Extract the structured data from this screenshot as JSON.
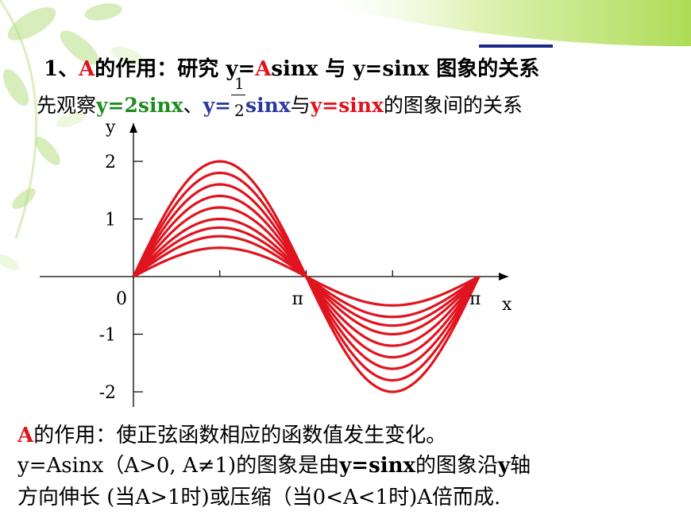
{
  "heading": {
    "number": "1、",
    "a": "A",
    "rest1": "的作用：研究 y=",
    "a2": "A",
    "rest2": "sinx 与 y=sinx 图象的关系"
  },
  "subheading": {
    "prefix": "先观察",
    "f1": "y=2sinx",
    "sep1": "、",
    "f2_pre": "y=",
    "frac_num": "1",
    "frac_den": "2",
    "f2_post": "sinx",
    "mid": "与",
    "f3": "y=sinx",
    "suffix": "的图象间的关系"
  },
  "chart_data": {
    "type": "line",
    "x": [
      "0",
      "π/2",
      "π",
      "3π/2",
      "2π"
    ],
    "xlabel": "x",
    "ylabel": "y",
    "ylim": [
      -2,
      2
    ],
    "grid": false,
    "y_ticks": [
      "2",
      "1",
      "-1",
      "-2"
    ],
    "x_tick_labels": [
      "0",
      "π",
      "π"
    ],
    "series_color": "#e0141e",
    "series": [
      {
        "amplitude": 2.0,
        "values": [
          0,
          2.0,
          0,
          -2.0,
          0
        ]
      },
      {
        "amplitude": 1.8,
        "values": [
          0,
          1.8,
          0,
          -1.8,
          0
        ]
      },
      {
        "amplitude": 1.6,
        "values": [
          0,
          1.6,
          0,
          -1.6,
          0
        ]
      },
      {
        "amplitude": 1.4,
        "values": [
          0,
          1.4,
          0,
          -1.4,
          0
        ]
      },
      {
        "amplitude": 1.2,
        "values": [
          0,
          1.2,
          0,
          -1.2,
          0
        ]
      },
      {
        "amplitude": 1.0,
        "values": [
          0,
          1.0,
          0,
          -1.0,
          0
        ]
      },
      {
        "amplitude": 0.85,
        "values": [
          0,
          0.85,
          0,
          -0.85,
          0
        ]
      },
      {
        "amplitude": 0.7,
        "values": [
          0,
          0.7,
          0,
          -0.7,
          0
        ]
      },
      {
        "amplitude": 0.5,
        "values": [
          0,
          0.5,
          0,
          -0.5,
          0
        ]
      }
    ]
  },
  "bottom": {
    "line1_a": "A",
    "line1_rest": "的作用：使正弦函数相应的函数值发生变化。",
    "line2_pre": "y=Asinx（A>0, A≠1)的图象是由",
    "line2_bold": "y=sinx",
    "line2_mid": "的图象沿",
    "line2_bold2": "y",
    "line2_post": "轴",
    "line3": "方向伸长 (当A>1时)或压缩（当0<A<1时)A倍而成."
  }
}
